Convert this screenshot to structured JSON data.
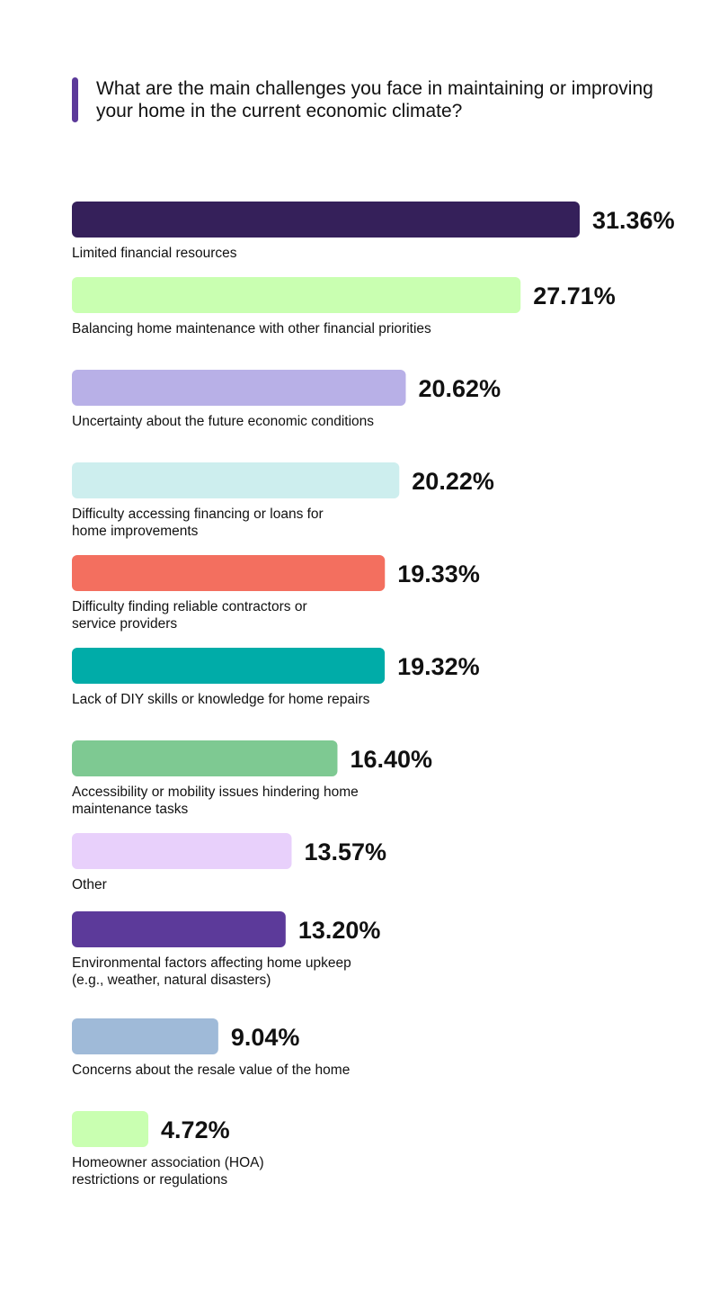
{
  "chart_data": {
    "type": "bar",
    "orientation": "horizontal",
    "title": "What are the main challenges you face in maintaining or improving your home in the current economic climate?",
    "categories": [
      [
        "Limited financial resources"
      ],
      [
        "Balancing home maintenance with other financial priorities"
      ],
      [
        "Uncertainty about the future economic conditions"
      ],
      [
        "Difficulty accessing financing or loans for",
        "home improvements"
      ],
      [
        "Difficulty finding reliable contractors or",
        "service providers"
      ],
      [
        "Lack of DIY skills or knowledge for home repairs"
      ],
      [
        "Accessibility or mobility issues hindering home",
        "maintenance tasks"
      ],
      [
        "Other"
      ],
      [
        "Environmental factors affecting home upkeep",
        "(e.g., weather, natural disasters)"
      ],
      [
        "Concerns about the resale value of the home"
      ],
      [
        "Homeowner association (HOA)",
        "restrictions or regulations"
      ]
    ],
    "values": [
      31.36,
      27.71,
      20.62,
      20.22,
      19.33,
      19.32,
      16.4,
      13.57,
      13.2,
      9.04,
      4.72
    ],
    "value_labels": [
      "31.36%",
      "27.71%",
      "20.62%",
      "20.22%",
      "19.33%",
      "19.32%",
      "16.40%",
      "13.57%",
      "13.20%",
      "9.04%",
      "4.72%"
    ],
    "colors": [
      "#35205a",
      "#c9ffb1",
      "#b8b0e7",
      "#cdeeee",
      "#f36f5f",
      "#00aca8",
      "#7ec992",
      "#e8d0fb",
      "#5c3a9a",
      "#9fbad8",
      "#c9ffb1"
    ],
    "xlim": [
      0,
      31.36
    ],
    "grid": false,
    "legend": "none"
  }
}
